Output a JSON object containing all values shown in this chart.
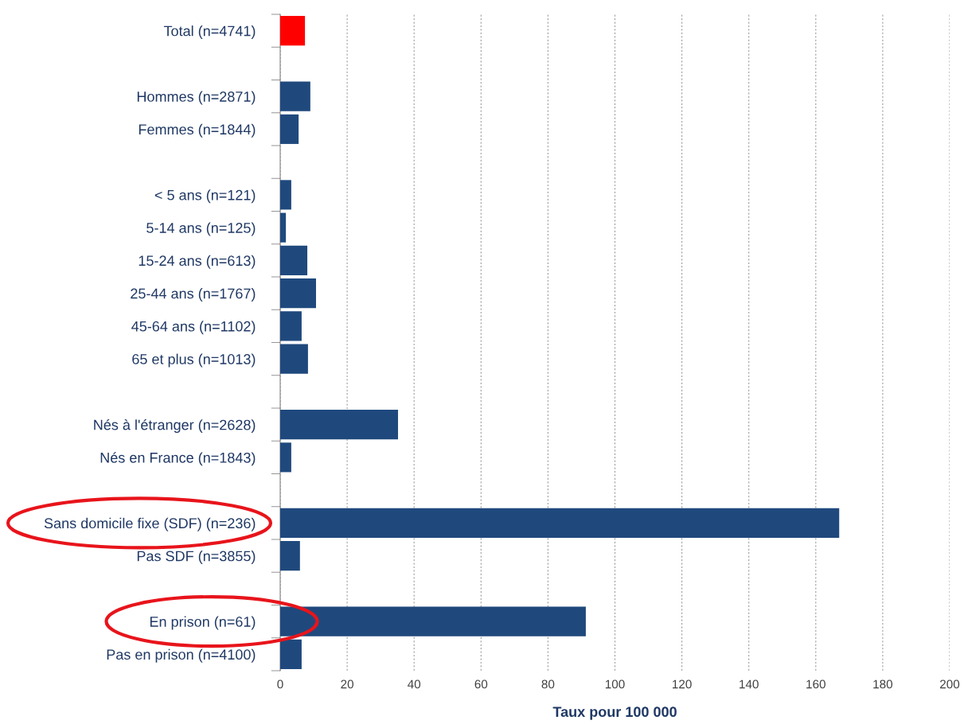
{
  "chart_data": {
    "type": "bar",
    "orientation": "horizontal",
    "xlabel": "Taux pour 100 000",
    "categories": [
      "Total (n=4741)",
      null,
      "Hommes (n=2871)",
      "Femmes (n=1844)",
      null,
      "< 5 ans (n=121)",
      "5-14 ans (n=125)",
      "15-24 ans (n=613)",
      "25-44 ans (n=1767)",
      "45-64 ans (n=1102)",
      "65 et plus (n=1013)",
      null,
      "Nés à l'étranger (n=2628)",
      "Nés en France (n=1843)",
      null,
      "Sans domicile fixe (SDF) (n=236)",
      "Pas SDF (n=3855)",
      null,
      "En prison (n=61)",
      "Pas en prison (n=4100)"
    ],
    "values": [
      7.4,
      null,
      9.0,
      5.5,
      null,
      3.3,
      1.7,
      8.1,
      10.7,
      6.4,
      8.3,
      null,
      35.2,
      3.3,
      null,
      167,
      5.9,
      null,
      91.3,
      6.4
    ],
    "colors": [
      "#ff0000",
      null,
      "#1f497d",
      "#1f497d",
      null,
      "#1f497d",
      "#1f497d",
      "#1f497d",
      "#1f497d",
      "#1f497d",
      "#1f497d",
      null,
      "#1f497d",
      "#1f497d",
      null,
      "#1f497d",
      "#1f497d",
      null,
      "#1f497d",
      "#1f497d"
    ],
    "xlim": [
      0,
      200
    ],
    "xticks": [
      0,
      20,
      40,
      60,
      80,
      100,
      120,
      140,
      160,
      180,
      200
    ],
    "grid": "x"
  }
}
